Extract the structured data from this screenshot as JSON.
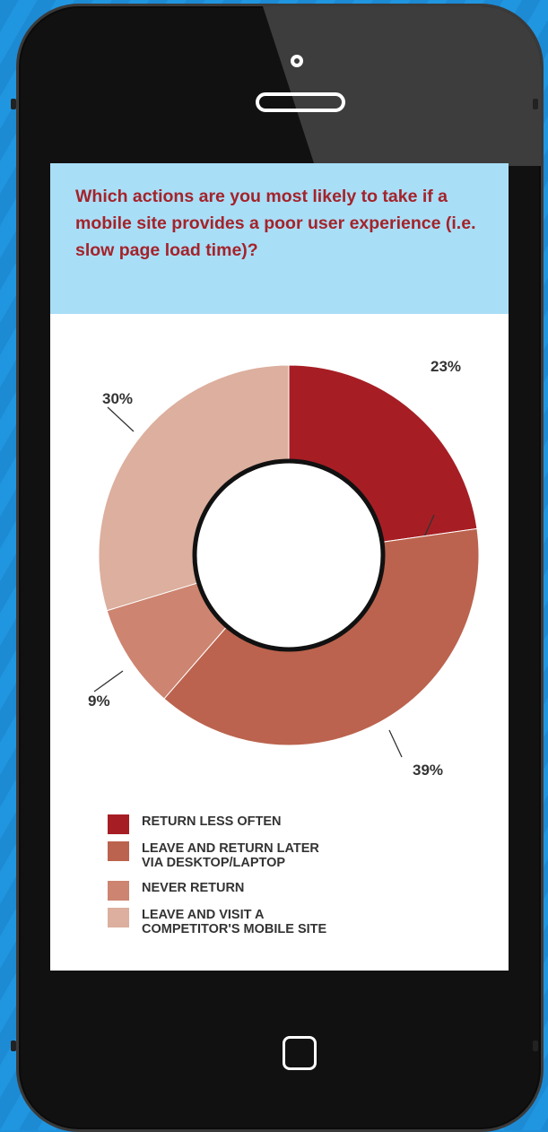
{
  "chart_data": {
    "type": "pie",
    "variant": "donut",
    "title": "Which actions are you most likely to take if a mobile site provides a poor user experience (i.e. slow page load time)?",
    "slices": [
      {
        "label": "RETURN LESS OFTEN",
        "value": 23,
        "display": "23%",
        "color": "#a61e24"
      },
      {
        "label": "LEAVE AND RETURN LATER\nVIA DESKTOP/LAPTOP",
        "value": 39,
        "display": "39%",
        "color": "#bb634e"
      },
      {
        "label": "NEVER RETURN",
        "value": 9,
        "display": "9%",
        "color": "#cd8470"
      },
      {
        "label": "LEAVE AND VISIT A\nCOMPETITOR'S MOBILE SITE",
        "value": 30,
        "display": "30%",
        "color": "#dcaf9e"
      }
    ],
    "legend_position": "bottom"
  }
}
